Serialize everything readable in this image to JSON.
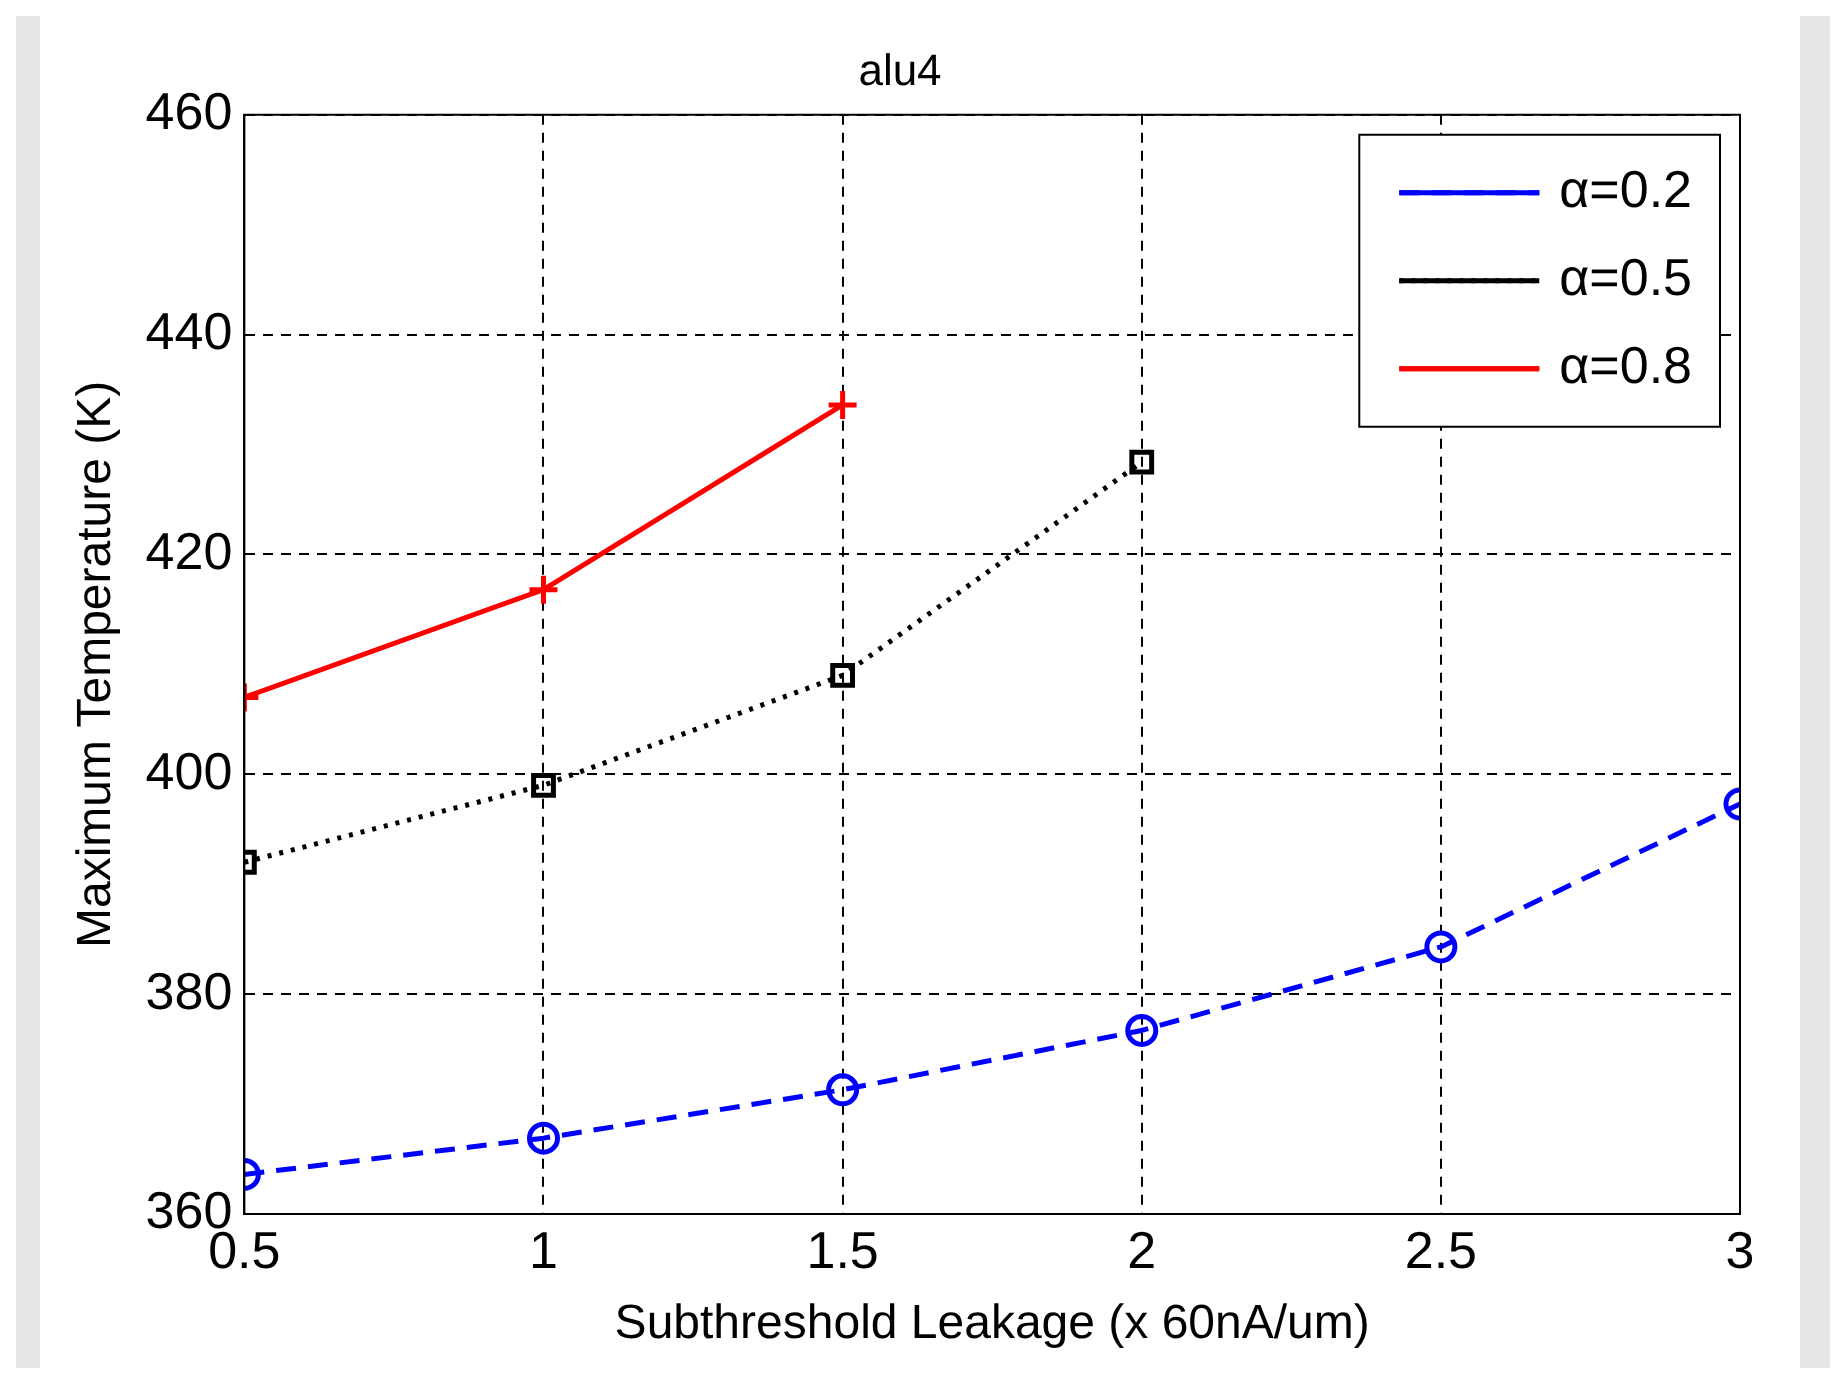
{
  "chart_data": {
    "type": "line",
    "title": "alu4",
    "xlabel": "Subthreshold Leakage (x 60nA/um)",
    "ylabel": "Maximum Temperature (K)",
    "xlim": [
      0.5,
      3
    ],
    "xticks": [
      0.5,
      1,
      1.5,
      2,
      2.5,
      3
    ],
    "ylim": [
      360,
      460
    ],
    "yticks": [
      360,
      380,
      400,
      420,
      440,
      460
    ],
    "grid": true,
    "legend": "top right",
    "series": [
      {
        "name": "α=0.2",
        "color": "#0000ff",
        "marker": "circle",
        "line_style": "dashed",
        "x": [
          0.5,
          1,
          1.5,
          2,
          2.5,
          3
        ],
        "values": [
          363.6,
          366.9,
          371.3,
          376.7,
          384.3,
          397.3
        ]
      },
      {
        "name": "α=0.5",
        "color": "#000000",
        "marker": "square",
        "line_style": "dotted",
        "x": [
          0.5,
          1,
          1.5,
          2
        ],
        "values": [
          392.0,
          399.0,
          409.0,
          428.4
        ]
      },
      {
        "name": "α=0.8",
        "color": "#ff0000",
        "marker": "cross",
        "line_style": "solid",
        "x": [
          0.5,
          1,
          1.5
        ],
        "values": [
          407.0,
          416.8,
          433.6
        ]
      }
    ]
  }
}
